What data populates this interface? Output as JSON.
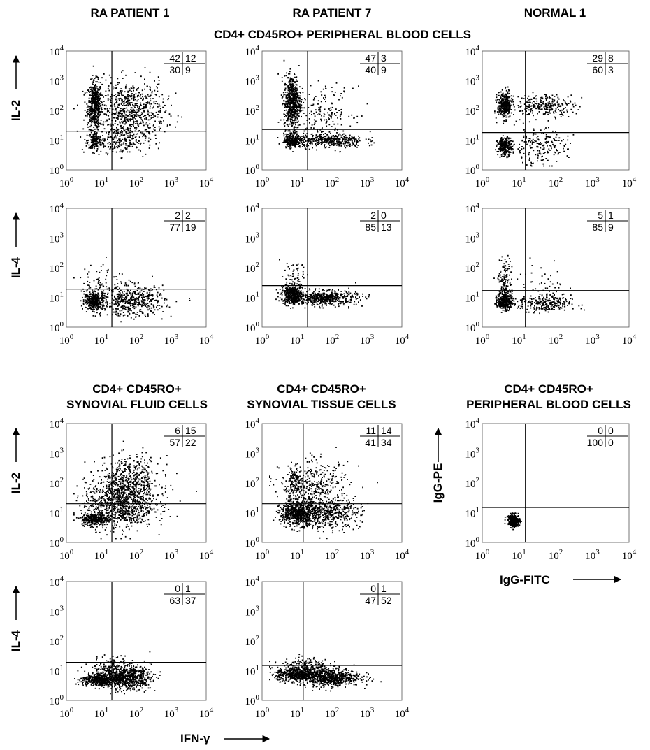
{
  "column_titles": [
    "RA PATIENT 1",
    "RA PATIENT 7",
    "NORMAL  1"
  ],
  "pb_section_title": "CD4+ CD45RO+ PERIPHERAL BLOOD CELLS",
  "sf_title": [
    "CD4+ CD45RO+",
    "SYNOVIAL FLUID CELLS"
  ],
  "st_title": [
    "CD4+ CD45RO+",
    "SYNOVIAL TISSUE CELLS"
  ],
  "ctrl_title": [
    "CD4+ CD45RO+",
    "PERIPHERAL BLOOD CELLS"
  ],
  "x_axis_label": "IFN-γ",
  "chart_data": [
    {
      "id": "pb-ra1-il2",
      "type": "scatter",
      "ylabel": "IL-2",
      "xlim": [
        1,
        10000
      ],
      "ylim": [
        1,
        10000
      ],
      "log": true,
      "quadrant_percentages": {
        "upper_left": "42",
        "upper_right": "12",
        "lower_left": "30",
        "lower_right": "9"
      },
      "gate": {
        "x": 20,
        "y": 20
      }
    },
    {
      "id": "pb-ra7-il2",
      "type": "scatter",
      "xlim": [
        1,
        10000
      ],
      "ylim": [
        1,
        10000
      ],
      "log": true,
      "quadrant_percentages": {
        "upper_left": "47",
        "upper_right": "3",
        "lower_left": "40",
        "lower_right": "9"
      },
      "gate": {
        "x": 20,
        "y": 23
      }
    },
    {
      "id": "pb-n1-il2",
      "type": "scatter",
      "xlim": [
        1,
        10000
      ],
      "ylim": [
        1,
        10000
      ],
      "log": true,
      "quadrant_percentages": {
        "upper_left": "29",
        "upper_right": "8",
        "lower_left": "60",
        "lower_right": "3"
      },
      "gate": {
        "x": 15,
        "y": 18
      }
    },
    {
      "id": "pb-ra1-il4",
      "type": "scatter",
      "ylabel": "IL-4",
      "xlim": [
        1,
        10000
      ],
      "ylim": [
        1,
        10000
      ],
      "log": true,
      "quadrant_percentages": {
        "upper_left": "2",
        "upper_right": "2",
        "lower_left": "77",
        "lower_right": "19"
      },
      "gate": {
        "x": 20,
        "y": 19
      }
    },
    {
      "id": "pb-ra7-il4",
      "type": "scatter",
      "xlim": [
        1,
        10000
      ],
      "ylim": [
        1,
        10000
      ],
      "log": true,
      "quadrant_percentages": {
        "upper_left": "2",
        "upper_right": "0",
        "lower_left": "85",
        "lower_right": "13"
      },
      "gate": {
        "x": 20,
        "y": 25
      }
    },
    {
      "id": "pb-n1-il4",
      "type": "scatter",
      "xlim": [
        1,
        10000
      ],
      "ylim": [
        1,
        10000
      ],
      "log": true,
      "quadrant_percentages": {
        "upper_left": "5",
        "upper_right": "1",
        "lower_left": "85",
        "lower_right": "9"
      },
      "gate": {
        "x": 15,
        "y": 17
      }
    },
    {
      "id": "sf-il2",
      "type": "scatter",
      "ylabel": "IL-2",
      "xlim": [
        1,
        10000
      ],
      "ylim": [
        1,
        10000
      ],
      "log": true,
      "quadrant_percentages": {
        "upper_left": "6",
        "upper_right": "15",
        "lower_left": "57",
        "lower_right": "22"
      },
      "gate": {
        "x": 20,
        "y": 20
      }
    },
    {
      "id": "st-il2",
      "type": "scatter",
      "xlim": [
        1,
        10000
      ],
      "ylim": [
        1,
        10000
      ],
      "log": true,
      "quadrant_percentages": {
        "upper_left": "11",
        "upper_right": "14",
        "lower_left": "41",
        "lower_right": "34"
      },
      "gate": {
        "x": 15,
        "y": 20
      }
    },
    {
      "id": "ctrl-igg",
      "type": "scatter",
      "xlabel": "IgG-FITC",
      "ylabel": "IgG-PE",
      "xlim": [
        1,
        10000
      ],
      "ylim": [
        1,
        10000
      ],
      "log": true,
      "quadrant_percentages": {
        "upper_left": "0",
        "upper_right": "0",
        "lower_left": "100",
        "lower_right": "0"
      },
      "gate": {
        "x": 15,
        "y": 15
      }
    },
    {
      "id": "sf-il4",
      "type": "scatter",
      "ylabel": "IL-4",
      "xlim": [
        1,
        10000
      ],
      "ylim": [
        1,
        10000
      ],
      "log": true,
      "quadrant_percentages": {
        "upper_left": "0",
        "upper_right": "1",
        "lower_left": "63",
        "lower_right": "37"
      },
      "gate": {
        "x": 20,
        "y": 19
      }
    },
    {
      "id": "st-il4",
      "type": "scatter",
      "xlim": [
        1,
        10000
      ],
      "ylim": [
        1,
        10000
      ],
      "log": true,
      "quadrant_percentages": {
        "upper_left": "0",
        "upper_right": "1",
        "lower_left": "47",
        "lower_right": "52"
      },
      "gate": {
        "x": 15,
        "y": 15
      }
    }
  ]
}
